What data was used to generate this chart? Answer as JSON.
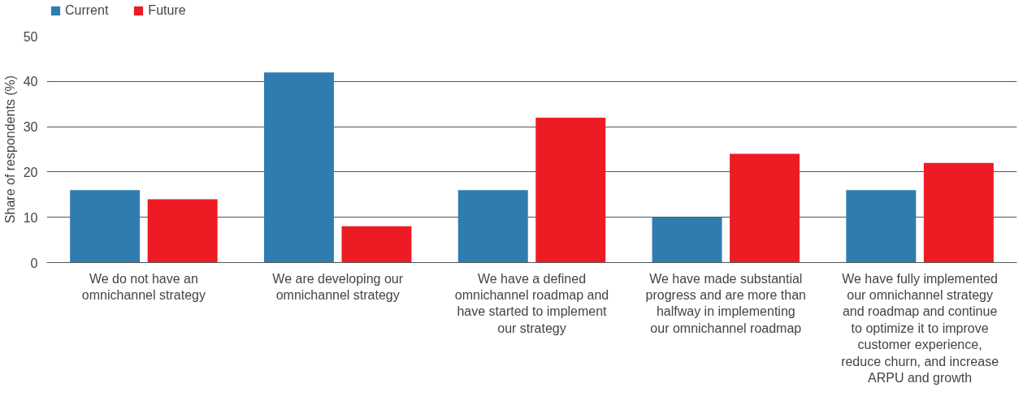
{
  "chart_data": {
    "type": "bar",
    "ylabel": "Share of respondents (%)",
    "categories": [
      "We do not have an omnichannel strategy",
      "We are developing our omnichannel strategy",
      "We have a defined omnichannel roadmap and have started to implement our strategy",
      "We have made substantial progress and are more than halfway in implementing our omnichannel roadmap",
      "We have fully implemented our omnichannel strategy and roadmap and continue to optimize it to improve customer experience, reduce churn, and increase ARPU and growth"
    ],
    "series": [
      {
        "name": "Current",
        "color": "#2f7db0",
        "values": [
          16,
          42,
          16,
          10,
          16
        ]
      },
      {
        "name": "Future",
        "color": "#ed1c24",
        "values": [
          14,
          8,
          32,
          24,
          22
        ]
      }
    ],
    "ylim": [
      0,
      50
    ],
    "yticks": [
      0,
      10,
      20,
      30,
      40,
      50
    ],
    "grid": "y",
    "legend": "top left"
  }
}
